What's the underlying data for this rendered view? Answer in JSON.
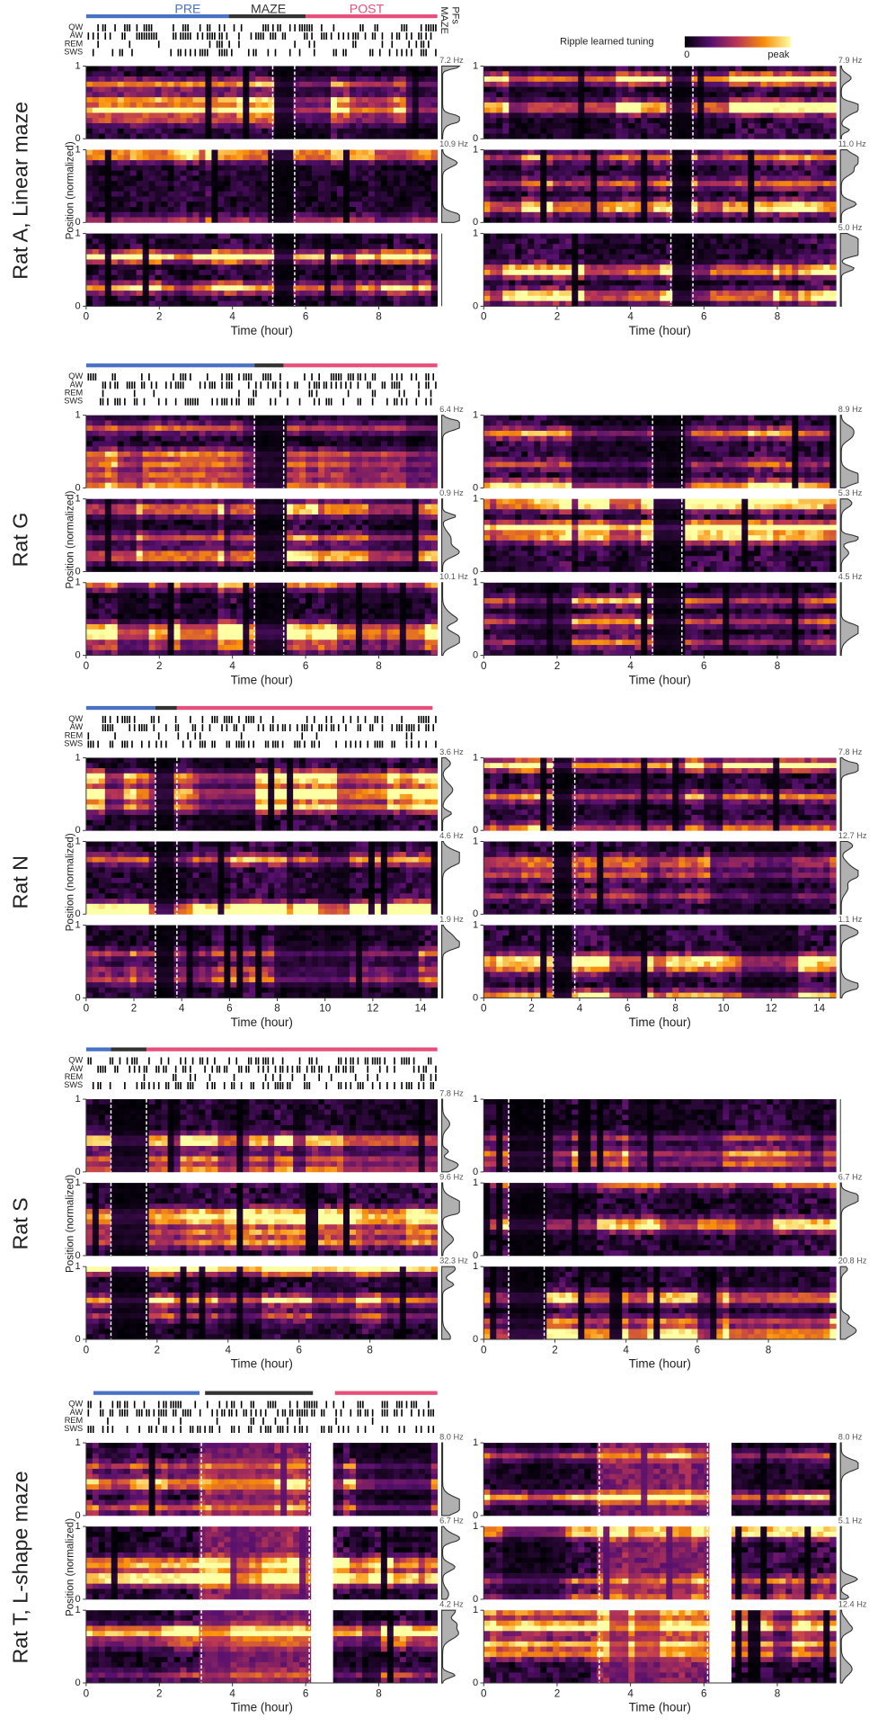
{
  "chart_data": [
    {
      "type": "heatmap",
      "title": "Rat A, Linear maze",
      "xlabel": "Time (hour)",
      "ylabel": "Position (normalized)",
      "xlim": [
        0,
        9.6
      ],
      "xticks": [
        0,
        2,
        4,
        6,
        8
      ],
      "ylim": [
        0,
        1
      ],
      "yticks": [
        0,
        1
      ],
      "epoch_names": [
        "PRE",
        "MAZE",
        "POST"
      ],
      "epoch_colors": [
        "#4a72c4",
        "#333333",
        "#e6507a"
      ],
      "epochs": [
        [
          0,
          3.9
        ],
        [
          3.9,
          6.0
        ],
        [
          6.0,
          9.6
        ]
      ],
      "dashed": [
        5.1,
        5.7
      ],
      "state_labels": [
        "QW",
        "AW",
        "REM",
        "SWS"
      ],
      "marginal_label": [
        "MAZE",
        "PFs"
      ],
      "colorbar": {
        "title": "Ripple learned tuning",
        "labels": [
          "0",
          "peak"
        ]
      },
      "rates": [
        [
          "7.2 Hz",
          "10.9 Hz",
          null
        ],
        [
          "7.9 Hz",
          "11.0 Hz",
          "5.0 Hz"
        ]
      ]
    },
    {
      "type": "heatmap",
      "title": "Rat G",
      "xlabel": "Time (hour)",
      "ylabel": "Position (normalized)",
      "xlim": [
        0,
        9.6
      ],
      "xticks": [
        0,
        2,
        4,
        6,
        8
      ],
      "ylim": [
        0,
        1
      ],
      "yticks": [
        0,
        1
      ],
      "epoch_colors": [
        "#4a72c4",
        "#333333",
        "#e6507a"
      ],
      "epochs": [
        [
          0,
          4.6
        ],
        [
          4.6,
          5.4
        ],
        [
          5.4,
          9.6
        ]
      ],
      "dashed": [
        4.6,
        5.4
      ],
      "state_labels": [
        "QW",
        "AW",
        "REM",
        "SWS"
      ],
      "rates": [
        [
          "6.4 Hz",
          "0.9 Hz",
          "10.1 Hz"
        ],
        [
          "8.9 Hz",
          "5.3 Hz",
          "4.5 Hz"
        ]
      ]
    },
    {
      "type": "heatmap",
      "title": "Rat N",
      "xlabel": "Time (hour)",
      "ylabel": "Position (normalized)",
      "xlim": [
        0,
        14.7
      ],
      "xticks": [
        0,
        2,
        4,
        6,
        8,
        10,
        12,
        14
      ],
      "ylim": [
        0,
        1
      ],
      "yticks": [
        0,
        1
      ],
      "epoch_colors": [
        "#4a72c4",
        "#333333",
        "#e6507a"
      ],
      "epochs": [
        [
          0,
          2.9
        ],
        [
          2.9,
          3.8
        ],
        [
          3.8,
          14.5
        ]
      ],
      "dashed": [
        2.9,
        3.8
      ],
      "state_labels": [
        "QW",
        "AW",
        "REM",
        "SWS"
      ],
      "rates": [
        [
          "3.6 Hz",
          "4.6 Hz",
          "1.9 Hz"
        ],
        [
          "7.8 Hz",
          "12.7 Hz",
          "1.1 Hz"
        ]
      ]
    },
    {
      "type": "heatmap",
      "title": "Rat S",
      "xlabel": "Time (hour)",
      "ylabel": "Position (normalized)",
      "xlim": [
        0,
        9.9
      ],
      "xticks": [
        0,
        2,
        4,
        6,
        8
      ],
      "ylim": [
        0,
        1
      ],
      "yticks": [
        0,
        1
      ],
      "epoch_colors": [
        "#4a72c4",
        "#333333",
        "#e6507a"
      ],
      "epochs": [
        [
          0,
          0.7
        ],
        [
          0.7,
          1.7
        ],
        [
          1.7,
          9.9
        ]
      ],
      "dashed": [
        0.7,
        1.7
      ],
      "state_labels": [
        "QW",
        "AW",
        "REM",
        "SWS"
      ],
      "rates": [
        [
          "7.8 Hz",
          "9.6 Hz",
          "32.3 Hz"
        ],
        [
          null,
          "6.7 Hz",
          "20.8 Hz"
        ]
      ]
    },
    {
      "type": "heatmap",
      "title": "Rat T, L-shape maze",
      "xlabel": "Time (hour)",
      "ylabel": "Position (normalized)",
      "xlim": [
        0,
        9.6
      ],
      "xticks": [
        0,
        2,
        4,
        6,
        8
      ],
      "ylim": [
        0,
        1
      ],
      "yticks": [
        0,
        1
      ],
      "epoch_colors": [
        "#4a72c4",
        "#333333",
        "#e6507a"
      ],
      "epochs": [
        [
          0.2,
          3.1
        ],
        [
          3.25,
          6.2
        ],
        [
          6.8,
          9.6
        ]
      ],
      "dashed": [
        3.15,
        6.1
      ],
      "gaps": [
        [
          6.15,
          6.75
        ]
      ],
      "state_labels": [
        "QW",
        "AW",
        "REM",
        "SWS"
      ],
      "rates": [
        [
          "8.0 Hz",
          "6.7 Hz",
          "4.2 Hz"
        ],
        [
          "8.0 Hz",
          "5.1 Hz",
          "12.4 Hz"
        ]
      ]
    }
  ]
}
